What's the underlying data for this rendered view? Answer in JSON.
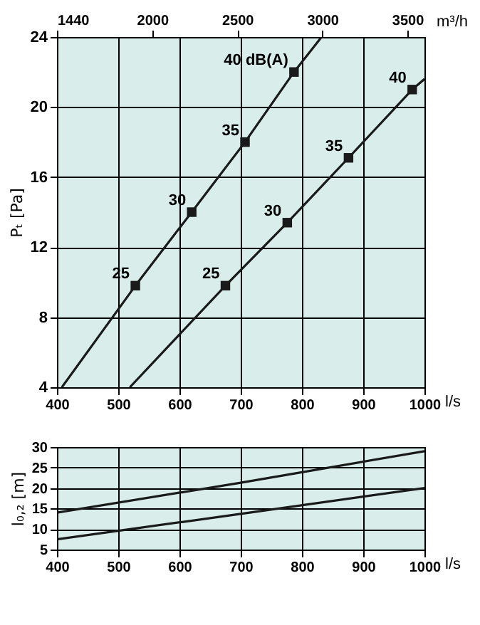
{
  "chart_data": [
    {
      "type": "line",
      "xlabel": "l/s",
      "ylabel": "Pₜ [Pa]",
      "x2label": "m³/h",
      "xlim": [
        400,
        1000
      ],
      "xticks": [
        400,
        500,
        600,
        700,
        800,
        900,
        1000
      ],
      "x2lim": [
        1440,
        3600
      ],
      "x2ticks": [
        1440,
        2000,
        2500,
        3000,
        3500
      ],
      "ylim": [
        4,
        24
      ],
      "yticks": [
        4,
        8,
        12,
        16,
        20,
        24
      ],
      "grid": true,
      "line_style": "solid",
      "series": [
        {
          "marker": "none",
          "color": "#1a1a1a",
          "x": [
            408,
            528,
            620,
            707,
            787,
            832
          ],
          "values": [
            4,
            9.8,
            14,
            18,
            22,
            24
          ]
        },
        {
          "marker": "none",
          "color": "#1a1a1a",
          "x": [
            519,
            675,
            776,
            876,
            980,
            1000
          ],
          "values": [
            4,
            9.8,
            13.4,
            17.1,
            21,
            21.6
          ]
        },
        {
          "type": "scatter",
          "marker": "square",
          "color": "#1a1a1a",
          "x": [
            528,
            620,
            707,
            787
          ],
          "values": [
            9.8,
            14,
            18,
            22
          ]
        },
        {
          "type": "scatter",
          "marker": "square",
          "color": "#1a1a1a",
          "x": [
            675,
            776,
            876,
            980
          ],
          "values": [
            9.8,
            13.4,
            17.1,
            21
          ]
        }
      ],
      "annotations": [
        {
          "text": "25",
          "x": 528,
          "y": 9.8
        },
        {
          "text": "30",
          "x": 620,
          "y": 14
        },
        {
          "text": "35",
          "x": 707,
          "y": 18
        },
        {
          "text": "40 dB(A)",
          "x": 787,
          "y": 22
        },
        {
          "text": "25",
          "x": 675,
          "y": 9.8
        },
        {
          "text": "30",
          "x": 776,
          "y": 13.4
        },
        {
          "text": "35",
          "x": 876,
          "y": 17.1
        },
        {
          "text": "40",
          "x": 980,
          "y": 21
        }
      ]
    },
    {
      "type": "line",
      "xlabel": "l/s",
      "ylabel": "l₀,₂ [m]",
      "xlim": [
        400,
        1000
      ],
      "xticks": [
        400,
        500,
        600,
        700,
        800,
        900,
        1000
      ],
      "ylim": [
        5,
        30
      ],
      "yticks": [
        5,
        10,
        15,
        20,
        25,
        30
      ],
      "grid": true,
      "line_style": "solid",
      "series": [
        {
          "marker": "none",
          "color": "#1a1a1a",
          "x": [
            400,
            700,
            1000
          ],
          "values": [
            14,
            21.3,
            29
          ]
        },
        {
          "marker": "none",
          "color": "#1a1a1a",
          "x": [
            400,
            700,
            1000
          ],
          "values": [
            7.5,
            13.7,
            20
          ]
        }
      ]
    }
  ]
}
